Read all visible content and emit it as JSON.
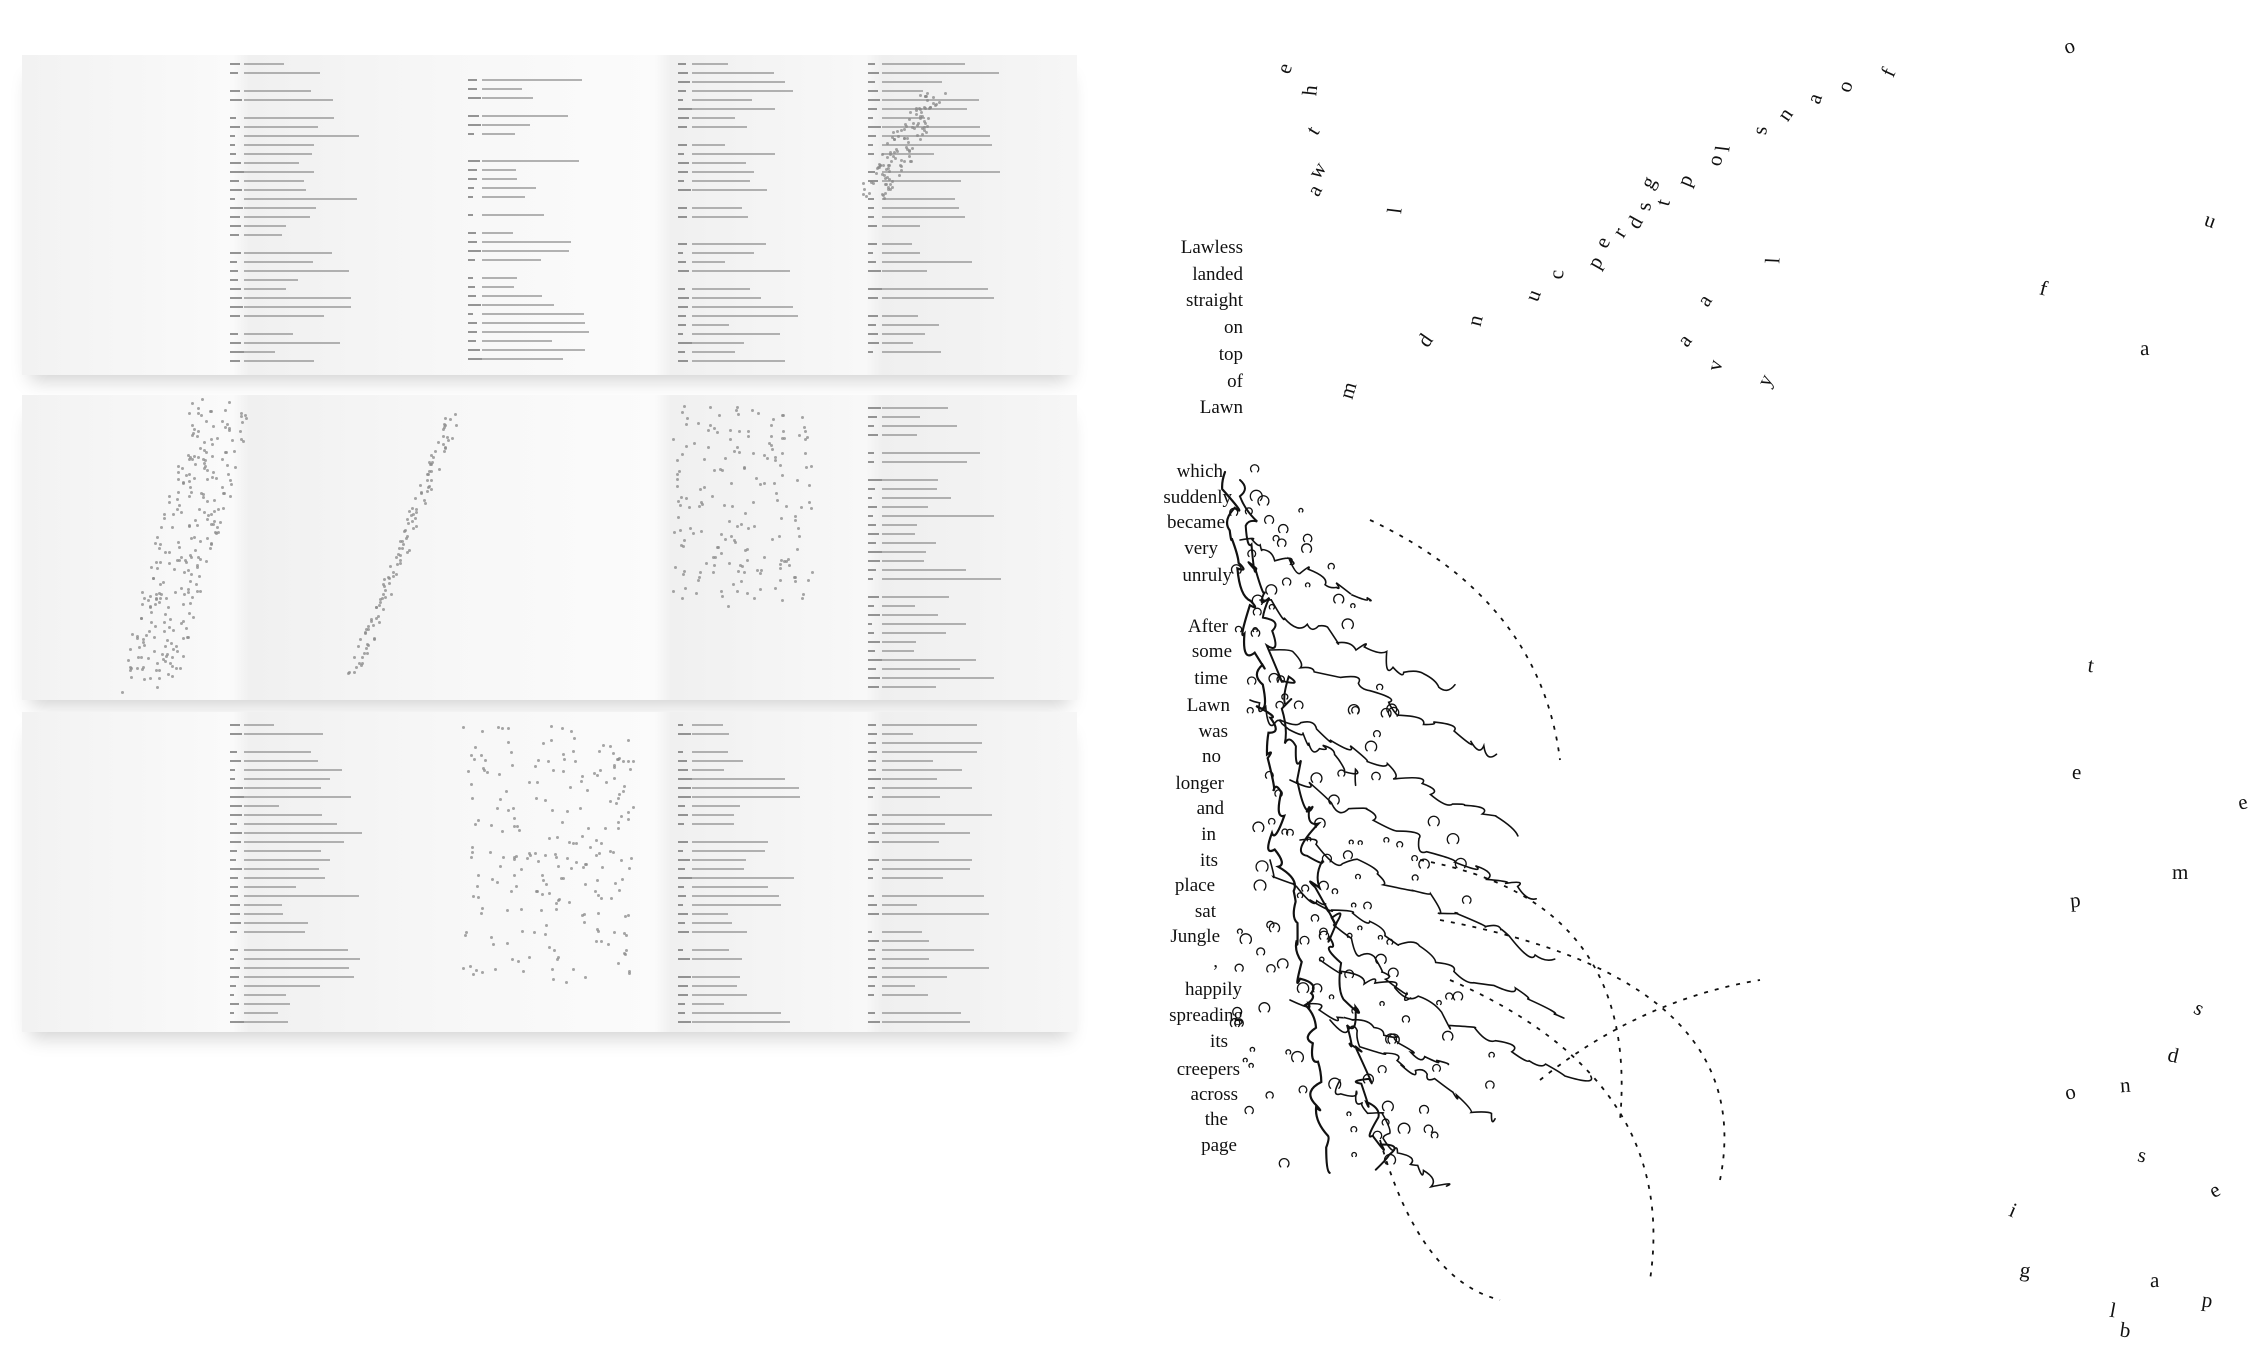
{
  "poem": {
    "head_words": [
      "Lawless",
      "landed",
      "straight",
      "on",
      "top",
      "of",
      "Lawn"
    ],
    "body_words": [
      "which",
      "suddenly",
      "became",
      "very",
      "unruly",
      "After",
      "some",
      "time",
      "Lawn",
      "was",
      "no",
      "longer",
      "and",
      "in",
      "its",
      "place",
      "sat",
      "Jungle",
      ",",
      "happily",
      "spreading",
      "its",
      "creepers",
      "across",
      "the",
      "page"
    ],
    "arc_letters": [
      "e",
      "h",
      "t",
      "w",
      "a",
      "l",
      "m",
      "d",
      "n",
      "u",
      "c",
      "p",
      "e",
      "r",
      "d",
      "s",
      "t",
      "g",
      "p",
      "o",
      "l",
      "s",
      "n",
      "a",
      "o",
      "f",
      "l",
      "a",
      "a",
      "v",
      "y"
    ],
    "scatter_letters": [
      "o",
      "f",
      "a",
      "u",
      "t",
      "e",
      "e",
      "m",
      "p",
      "s",
      "d",
      "n",
      "o",
      "s",
      "e",
      "p",
      "i",
      "g",
      "a",
      "l",
      "b"
    ],
    "colors": {
      "ink": "#111111",
      "paper": "#ffffff",
      "fold_shadow": "#e6e6e6"
    }
  }
}
